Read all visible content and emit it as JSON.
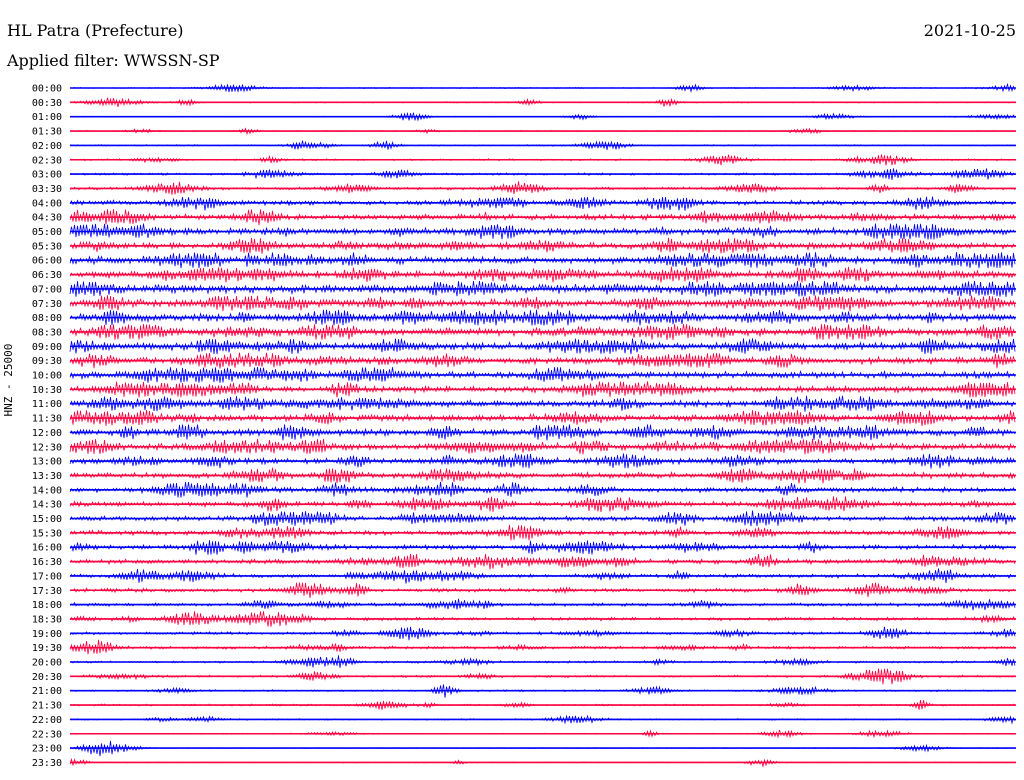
{
  "header": {
    "station": "HL Patra (Prefecture)",
    "date": "2021-10-25",
    "filter": "Applied filter: WWSSN-SP"
  },
  "colors": {
    "trace_a": "#0000ff",
    "trace_b": "#ff0040",
    "text": "#000000"
  },
  "chart_data": {
    "type": "line",
    "title": "HL Patra (Prefecture)",
    "ylabel": "HNZ - 25000",
    "xlabel": "",
    "grid": false,
    "categories": [
      "00:00",
      "00:30",
      "01:00",
      "01:30",
      "02:00",
      "02:30",
      "03:00",
      "03:30",
      "04:00",
      "04:30",
      "05:00",
      "05:30",
      "06:00",
      "06:30",
      "07:00",
      "07:30",
      "08:00",
      "08:30",
      "09:00",
      "09:30",
      "10:00",
      "10:30",
      "11:00",
      "11:30",
      "12:00",
      "12:30",
      "13:00",
      "13:30",
      "14:00",
      "14:30",
      "15:00",
      "15:30",
      "16:00",
      "16:30",
      "17:00",
      "17:30",
      "18:00",
      "18:30",
      "19:00",
      "19:30",
      "20:00",
      "20:30",
      "21:00",
      "21:30",
      "22:00",
      "22:30",
      "23:00",
      "23:30"
    ],
    "noise_level": [
      0.6,
      0.7,
      0.5,
      0.6,
      0.8,
      1.0,
      1.2,
      1.5,
      2.5,
      3.0,
      3.5,
      3.5,
      3.8,
      4.0,
      4.5,
      4.0,
      4.0,
      4.0,
      3.8,
      3.5,
      3.5,
      3.5,
      3.5,
      3.5,
      3.5,
      3.5,
      3.0,
      3.0,
      2.8,
      2.8,
      2.5,
      2.5,
      2.5,
      2.5,
      2.0,
      2.0,
      1.8,
      1.8,
      1.5,
      1.5,
      1.2,
      1.2,
      1.0,
      1.0,
      0.8,
      0.6,
      0.5,
      0.5
    ]
  }
}
